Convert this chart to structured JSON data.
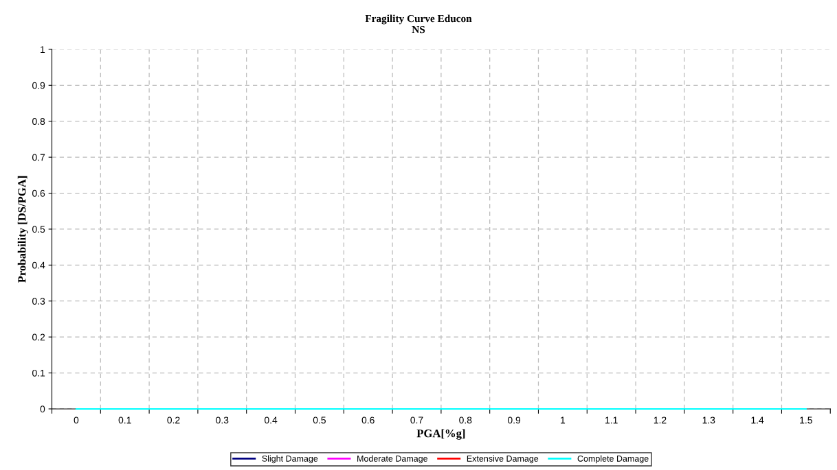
{
  "chart_data": {
    "type": "line",
    "title": "Fragility Curve Educon",
    "subtitle": "NS",
    "xlabel": "PGA[%g]",
    "ylabel": "Probability [DS/PGA]",
    "categories": [
      "0",
      "0.1",
      "0.2",
      "0.3",
      "0.4",
      "0.5",
      "0.6",
      "0.7",
      "0.8",
      "0.9",
      "1",
      "1.1",
      "1.2",
      "1.3",
      "1.4",
      "1.5"
    ],
    "series": [
      {
        "name": "Slight Damage",
        "color": "#000080",
        "values": [
          null,
          null,
          null,
          null,
          null,
          null,
          null,
          null,
          null,
          null,
          null,
          null,
          null,
          null,
          null,
          null
        ]
      },
      {
        "name": "Moderate Damage",
        "color": "#ff00ff",
        "values": [
          null,
          null,
          null,
          null,
          null,
          null,
          null,
          null,
          null,
          null,
          null,
          null,
          null,
          null,
          null,
          null
        ]
      },
      {
        "name": "Extensive Damage",
        "color": "#ff0000",
        "values": [
          null,
          null,
          null,
          null,
          null,
          null,
          null,
          null,
          null,
          null,
          null,
          null,
          null,
          null,
          null,
          null
        ]
      },
      {
        "name": "Complete Damage",
        "color": "#00ffff",
        "values": [
          0,
          0,
          0,
          0,
          0,
          0,
          0,
          0,
          0,
          0,
          0,
          0,
          0,
          0,
          0,
          0
        ]
      }
    ],
    "ylim": [
      0,
      1
    ],
    "yticks": [
      0,
      0.1,
      0.2,
      0.3,
      0.4,
      0.5,
      0.6,
      0.7,
      0.8,
      0.9,
      1
    ],
    "grid": true,
    "legend": "bottom",
    "marker": "none",
    "line_style": "solid"
  }
}
